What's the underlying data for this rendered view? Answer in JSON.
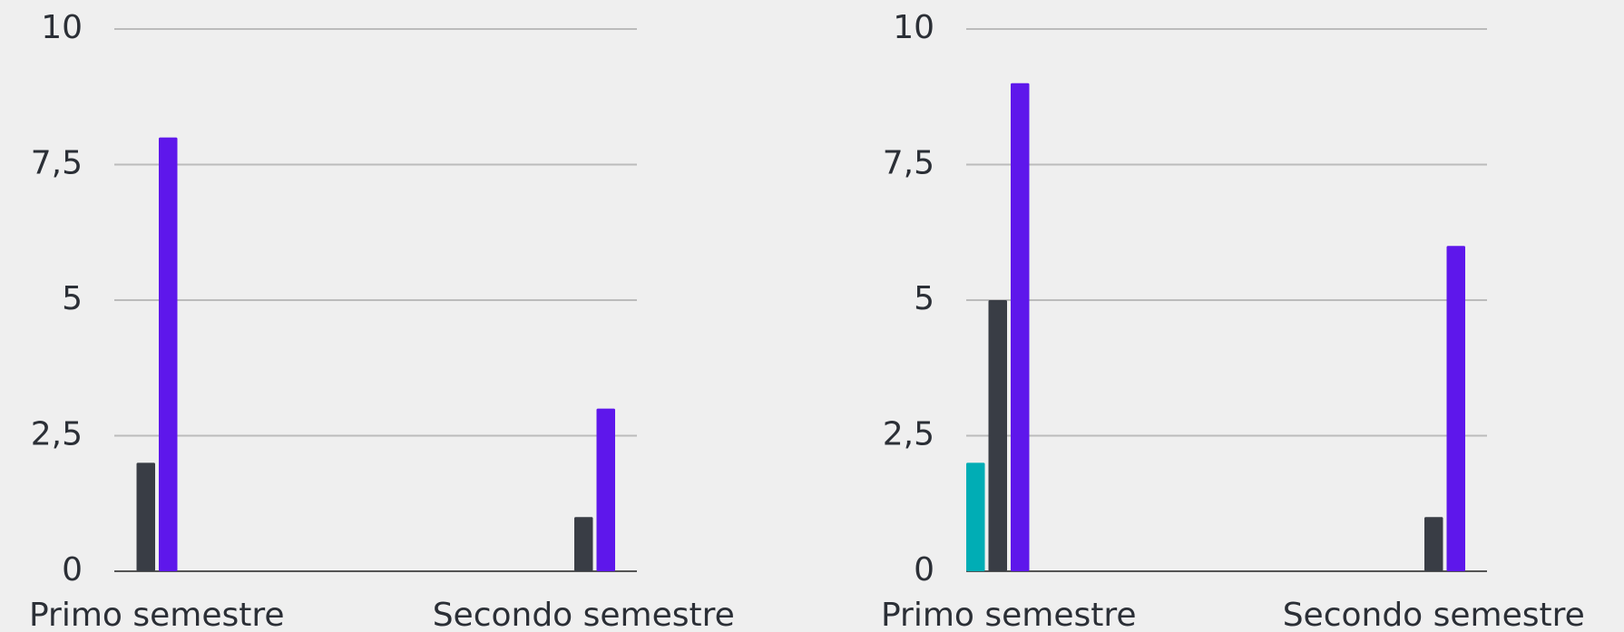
{
  "chart_data": [
    {
      "type": "bar",
      "categories": [
        "Primo semestre",
        "Secondo semestre"
      ],
      "series": [
        {
          "color": "#00adb5",
          "values": [
            0,
            0
          ]
        },
        {
          "color": "#393d45",
          "values": [
            2,
            1
          ]
        },
        {
          "color": "#5e17eb",
          "values": [
            8,
            3
          ]
        }
      ],
      "ylim": [
        0,
        10
      ],
      "yticks": [
        0,
        {
          "value": 2.5,
          "label": "2,5"
        },
        5,
        {
          "value": 7.5,
          "label": "7,5"
        },
        10
      ],
      "grid": true
    },
    {
      "type": "bar",
      "categories": [
        "Primo semestre",
        "Secondo semestre"
      ],
      "series": [
        {
          "color": "#00adb5",
          "values": [
            2,
            0
          ]
        },
        {
          "color": "#393d45",
          "values": [
            5,
            1
          ]
        },
        {
          "color": "#5e17eb",
          "values": [
            9,
            6
          ]
        }
      ],
      "ylim": [
        0,
        10
      ],
      "yticks": [
        0,
        {
          "value": 2.5,
          "label": "2,5"
        },
        5,
        {
          "value": 7.5,
          "label": "7,5"
        },
        10
      ],
      "grid": true
    }
  ]
}
